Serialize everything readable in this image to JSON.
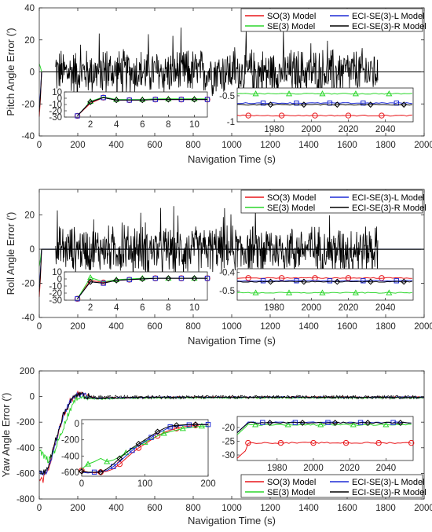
{
  "colors": {
    "so3": "#e8161a",
    "se3": "#2bd62b",
    "ecil": "#1f2cd6",
    "ecir": "#000000",
    "axis": "#262626"
  },
  "chart_data": [
    {
      "type": "line",
      "ylabel": "Pitch Angle Error (′)",
      "xlabel": "Navigation Time (s)",
      "xlim": [
        0,
        2000
      ],
      "ylim": [
        -40,
        40
      ],
      "xticks": [
        "0",
        "200",
        "400",
        "600",
        "800",
        "1000",
        "1200",
        "1400",
        "1600",
        "1800",
        "2000"
      ],
      "yticks": [
        "40",
        "20",
        "0",
        "-20",
        "-40"
      ],
      "ytick_values": [
        40,
        20,
        0,
        -20,
        -40
      ],
      "legend": [
        "SO(3) Model",
        "SE(3) Model",
        "ECI-SE(3)-L Model",
        "ECI-SE(3)-R Model"
      ],
      "legend_position": "top-right",
      "noise": {
        "start": 85,
        "end": 1760,
        "amplitude": 17
      },
      "initial_transient": {
        "so3": -28,
        "se3": 5,
        "ecil": -22,
        "ecir": -25
      },
      "inset_left": {
        "xlim": [
          0,
          11
        ],
        "ylim": [
          -30,
          10
        ],
        "xticks": [
          "2",
          "4",
          "6",
          "8",
          "10"
        ],
        "xtick_values": [
          2,
          4,
          6,
          8,
          10
        ],
        "yticks": [
          "10",
          "0",
          "-10",
          "-20",
          "-30"
        ],
        "ytick_values": [
          10,
          0,
          -10,
          -20,
          -30
        ],
        "x": [
          1,
          2,
          3,
          4,
          5,
          6,
          7,
          8,
          9,
          10,
          11
        ],
        "so3": [
          -28,
          -8,
          1,
          -3,
          -3,
          -3,
          -2,
          -2,
          -2,
          -2,
          -2
        ],
        "se3": [
          -28,
          -5,
          2,
          -2,
          -2,
          -2,
          -1,
          -1,
          -1,
          -1,
          -1
        ],
        "ecil": [
          -28,
          -6,
          1,
          -3,
          -3,
          -3,
          -2,
          -2,
          -2,
          -2,
          -2
        ],
        "ecir": [
          -28,
          -6,
          1,
          -3,
          -3,
          -3,
          -2,
          -2,
          -2,
          -2,
          -2
        ]
      },
      "inset_right": {
        "xlim": [
          1960,
          2055
        ],
        "ylim": [
          -1,
          -0.35
        ],
        "xticks": [
          "1980",
          "2000",
          "2020",
          "2040"
        ],
        "xtick_values": [
          1980,
          2000,
          2020,
          2040
        ],
        "yticks": [
          "-0.5",
          "-1"
        ],
        "ytick_values": [
          -0.5,
          -1
        ],
        "so3": -0.88,
        "se3": -0.46,
        "ecil": -0.64,
        "ecir": -0.67
      }
    },
    {
      "type": "line",
      "ylabel": "Roll Angle Error (′)",
      "xlabel": "Navigation Time (s)",
      "xlim": [
        0,
        2000
      ],
      "ylim": [
        -40,
        35
      ],
      "xticks": [
        "0",
        "200",
        "400",
        "600",
        "800",
        "1000",
        "1200",
        "1400",
        "1600",
        "1800",
        "2000"
      ],
      "yticks": [
        "20",
        "0",
        "-20",
        "-40"
      ],
      "ytick_values": [
        20,
        0,
        -20,
        -40
      ],
      "legend": [
        "SO(3) Model",
        "SE(3) Model",
        "ECI-SE(3)-L Model",
        "ECI-SE(3)-R Model"
      ],
      "legend_position": "top-right",
      "noise": {
        "start": 85,
        "end": 1760,
        "amplitude": 16
      },
      "initial_transient": {
        "so3": -28,
        "se3": -10,
        "ecil": -22,
        "ecir": -25
      },
      "inset_left": {
        "xlim": [
          0,
          11
        ],
        "ylim": [
          -30,
          10
        ],
        "xticks": [
          "2",
          "4",
          "6",
          "8",
          "10"
        ],
        "xtick_values": [
          2,
          4,
          6,
          8,
          10
        ],
        "yticks": [
          "10",
          "0",
          "-10",
          "-20",
          "-30"
        ],
        "ytick_values": [
          10,
          0,
          -10,
          -20,
          -30
        ],
        "x": [
          1,
          2,
          3,
          4,
          5,
          6,
          7,
          8,
          9,
          10,
          11
        ],
        "so3": [
          -28,
          -2,
          -5,
          -2,
          -1,
          0,
          1,
          1,
          1,
          1,
          1
        ],
        "se3": [
          -28,
          2,
          -4,
          -1,
          0,
          1,
          1,
          1,
          1,
          1,
          1
        ],
        "ecil": [
          -28,
          -4,
          -6,
          -2,
          -1,
          0,
          1,
          1,
          1,
          1,
          1
        ],
        "ecir": [
          -28,
          -4,
          -6,
          -2,
          -1,
          0,
          1,
          1,
          1,
          1,
          1
        ]
      },
      "inset_right": {
        "xlim": [
          1960,
          2055
        ],
        "ylim": [
          -0.55,
          -0.38
        ],
        "xticks": [
          "1980",
          "2000",
          "2020",
          "2040"
        ],
        "xtick_values": [
          1980,
          2000,
          2020,
          2040
        ],
        "yticks": [
          "-0.4",
          "-0.5"
        ],
        "ytick_values": [
          -0.4,
          -0.5
        ],
        "so3": -0.43,
        "se3": -0.51,
        "ecil": -0.445,
        "ecir": -0.45
      }
    },
    {
      "type": "line",
      "ylabel": "Yaw Angle Error (′)",
      "xlabel": "Navigation Time (s)",
      "xlim": [
        0,
        2000
      ],
      "ylim": [
        -800,
        200
      ],
      "xticks": [
        "0",
        "200",
        "400",
        "600",
        "800",
        "1000",
        "1200",
        "1400",
        "1600",
        "1800",
        "2000"
      ],
      "yticks": [
        "200",
        "0",
        "-200",
        "-400",
        "-600",
        "-800"
      ],
      "ytick_values": [
        200,
        0,
        -200,
        -400,
        -600,
        -800
      ],
      "legend": [
        "SO(3) Model",
        "SE(3) Model",
        "ECI-SE(3)-L Model",
        "ECI-SE(3)-R Model"
      ],
      "legend_position": "bottom-right",
      "curve": {
        "x": [
          0,
          20,
          50,
          80,
          120,
          160,
          200,
          250,
          300,
          400,
          600,
          2000
        ],
        "so3": [
          -640,
          -650,
          -560,
          -380,
          -170,
          -40,
          20,
          5,
          -15,
          -10,
          -5,
          -5
        ],
        "se3": [
          -420,
          -460,
          -500,
          -420,
          -260,
          -100,
          0,
          -10,
          -20,
          -15,
          -10,
          -10
        ],
        "ecil": [
          -600,
          -610,
          -560,
          -380,
          -170,
          -40,
          20,
          5,
          -15,
          -10,
          -5,
          -5
        ],
        "ecir": [
          -590,
          -600,
          -540,
          -360,
          -160,
          -40,
          20,
          5,
          -15,
          -10,
          -5,
          -5
        ]
      },
      "inset_left": {
        "xlim": [
          0,
          200
        ],
        "ylim": [
          -650,
          50
        ],
        "xticks": [
          "0",
          "100",
          "200"
        ],
        "xtick_values": [
          0,
          100,
          200
        ],
        "yticks": [
          "0",
          "-200",
          "-400",
          "-600"
        ],
        "ytick_values": [
          0,
          -200,
          -400,
          -600
        ],
        "x": [
          0,
          10,
          20,
          30,
          40,
          50,
          60,
          70,
          80,
          90,
          100,
          110,
          120,
          130,
          140,
          150,
          160,
          170,
          180,
          190,
          200
        ],
        "so3": [
          -580,
          -600,
          -610,
          -600,
          -590,
          -560,
          -500,
          -430,
          -360,
          -300,
          -250,
          -200,
          -150,
          -110,
          -80,
          -60,
          -40,
          -30,
          -20,
          -10,
          -10
        ],
        "se3": [
          -560,
          -500,
          -470,
          -430,
          -470,
          -450,
          -410,
          -360,
          -310,
          -270,
          -230,
          -190,
          -150,
          -120,
          -100,
          -80,
          -60,
          -50,
          -40,
          -30,
          -30
        ],
        "ecil": [
          -600,
          -610,
          -600,
          -590,
          -580,
          -530,
          -470,
          -400,
          -330,
          -270,
          -220,
          -170,
          -120,
          -80,
          -40,
          -30,
          -20,
          -15,
          -10,
          -10,
          -10
        ],
        "ecir": [
          -590,
          -600,
          -600,
          -600,
          -560,
          -500,
          -430,
          -360,
          -300,
          -250,
          -200,
          -150,
          -100,
          -60,
          -30,
          -20,
          -15,
          -10,
          -10,
          -10,
          -10
        ]
      },
      "inset_right": {
        "xlim": [
          1958,
          2055
        ],
        "ylim": [
          -32,
          -16
        ],
        "xticks": [
          "1980",
          "2000",
          "2020",
          "2040"
        ],
        "xtick_values": [
          1980,
          2000,
          2020,
          2040
        ],
        "yticks": [
          "-20",
          "-25",
          "-30"
        ],
        "ytick_values": [
          -20,
          -25,
          -30
        ],
        "so3": -25.6,
        "se3": -19.0,
        "ecil": -18.2,
        "ecir": -18.3
      }
    }
  ]
}
